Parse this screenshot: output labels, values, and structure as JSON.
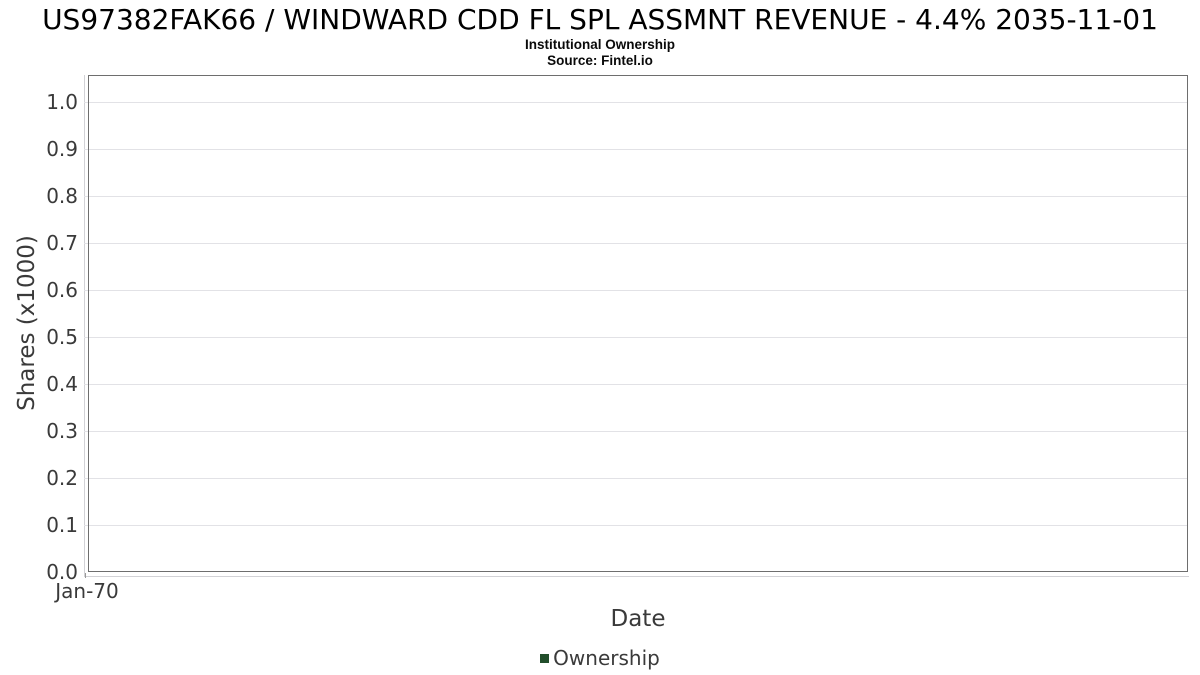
{
  "header": {
    "title": "US97382FAK66 / WINDWARD CDD FL SPL ASSMNT REVENUE - 4.4% 2035-11-01",
    "subtitle": "Institutional Ownership",
    "source": "Source: Fintel.io"
  },
  "chart_data": {
    "type": "line",
    "title": "US97382FAK66 / WINDWARD CDD FL SPL ASSMNT REVENUE - 4.4% 2035-11-01",
    "subtitle": "Institutional Ownership",
    "source": "Source: Fintel.io",
    "xlabel": "Date",
    "ylabel": "Shares (x1000)",
    "ylim": [
      0.0,
      1.0
    ],
    "ytick_step": 0.1,
    "ytick_labels": [
      "1.0",
      "0.9",
      "0.8",
      "0.7",
      "0.6",
      "0.5",
      "0.4",
      "0.3",
      "0.2",
      "0.1",
      "0.0"
    ],
    "xtick_labels": [
      "Jan-70"
    ],
    "grid": "horizontal-only",
    "legend_position": "bottom-center",
    "series": [
      {
        "name": "Ownership",
        "color": "#224e2b",
        "marker": "square",
        "x": [],
        "values": []
      }
    ]
  },
  "colors": {
    "background": "#ffffff",
    "plot_border": "#6e6e6e",
    "gridline": "#e2e2e6",
    "axis_line": "#d2d2d6",
    "tick_text": "#3a3a3a",
    "title_text": "#000000",
    "legend_green": "#224e2b"
  }
}
